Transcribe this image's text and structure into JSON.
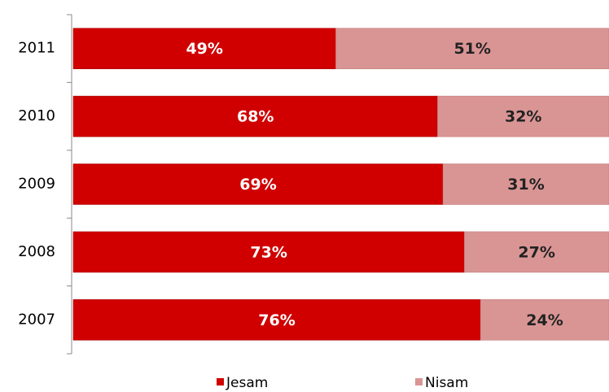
{
  "chart_data": {
    "type": "stacked-bar-horizontal",
    "categories": [
      "2011",
      "2010",
      "2009",
      "2008",
      "2007"
    ],
    "series": [
      {
        "name": "Jesam",
        "color": "#d00000",
        "values": [
          49,
          68,
          69,
          73,
          76
        ],
        "value_labels": [
          "49%",
          "68%",
          "69%",
          "73%",
          "76%"
        ]
      },
      {
        "name": "Nisam",
        "color": "#d99594",
        "values": [
          51,
          32,
          31,
          27,
          24
        ],
        "value_labels": [
          "51%",
          "32%",
          "31%",
          "27%",
          "24%"
        ]
      }
    ],
    "xlim": [
      0,
      100
    ]
  }
}
